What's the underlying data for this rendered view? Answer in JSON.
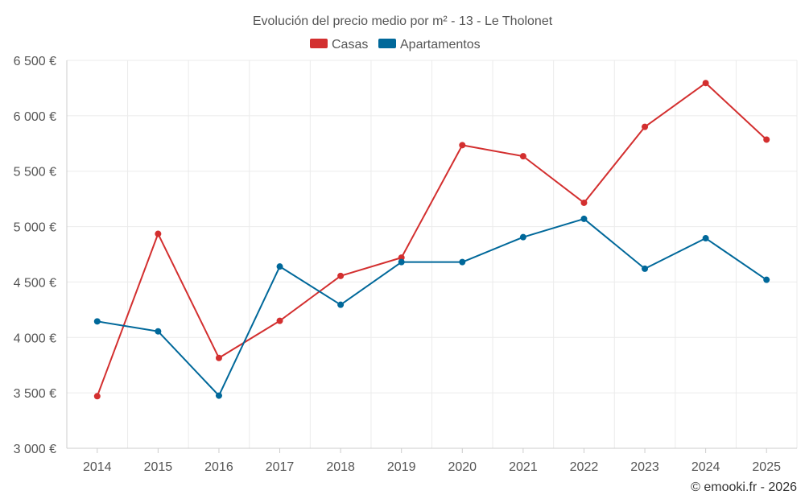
{
  "chart_data": {
    "type": "line",
    "title": "Evolución del precio medio por m² - 13 - Le Tholonet",
    "categories": [
      "2014",
      "2015",
      "2016",
      "2017",
      "2018",
      "2019",
      "2020",
      "2021",
      "2022",
      "2023",
      "2024",
      "2025"
    ],
    "series": [
      {
        "name": "Casas",
        "color": "#d32f2f",
        "values": [
          3470,
          4935,
          3815,
          4150,
          4555,
          4720,
          5735,
          5635,
          5215,
          5900,
          6295,
          5785
        ]
      },
      {
        "name": "Apartamentos",
        "color": "#00689a",
        "values": [
          4145,
          4055,
          3475,
          4640,
          4295,
          4680,
          4680,
          4905,
          5070,
          4620,
          4895,
          4520
        ]
      }
    ],
    "ylim": [
      3000,
      6500
    ],
    "yticks": [
      3000,
      3500,
      4000,
      4500,
      5000,
      5500,
      6000,
      6500
    ],
    "ytick_labels": [
      "3 000 €",
      "3 500 €",
      "4 000 €",
      "4 500 €",
      "5 000 €",
      "5 500 €",
      "6 000 €",
      "6 500 €"
    ],
    "xlabel": "",
    "ylabel": "",
    "grid": true,
    "legend_position": "top-center",
    "credit": "© emooki.fr - 2026"
  }
}
